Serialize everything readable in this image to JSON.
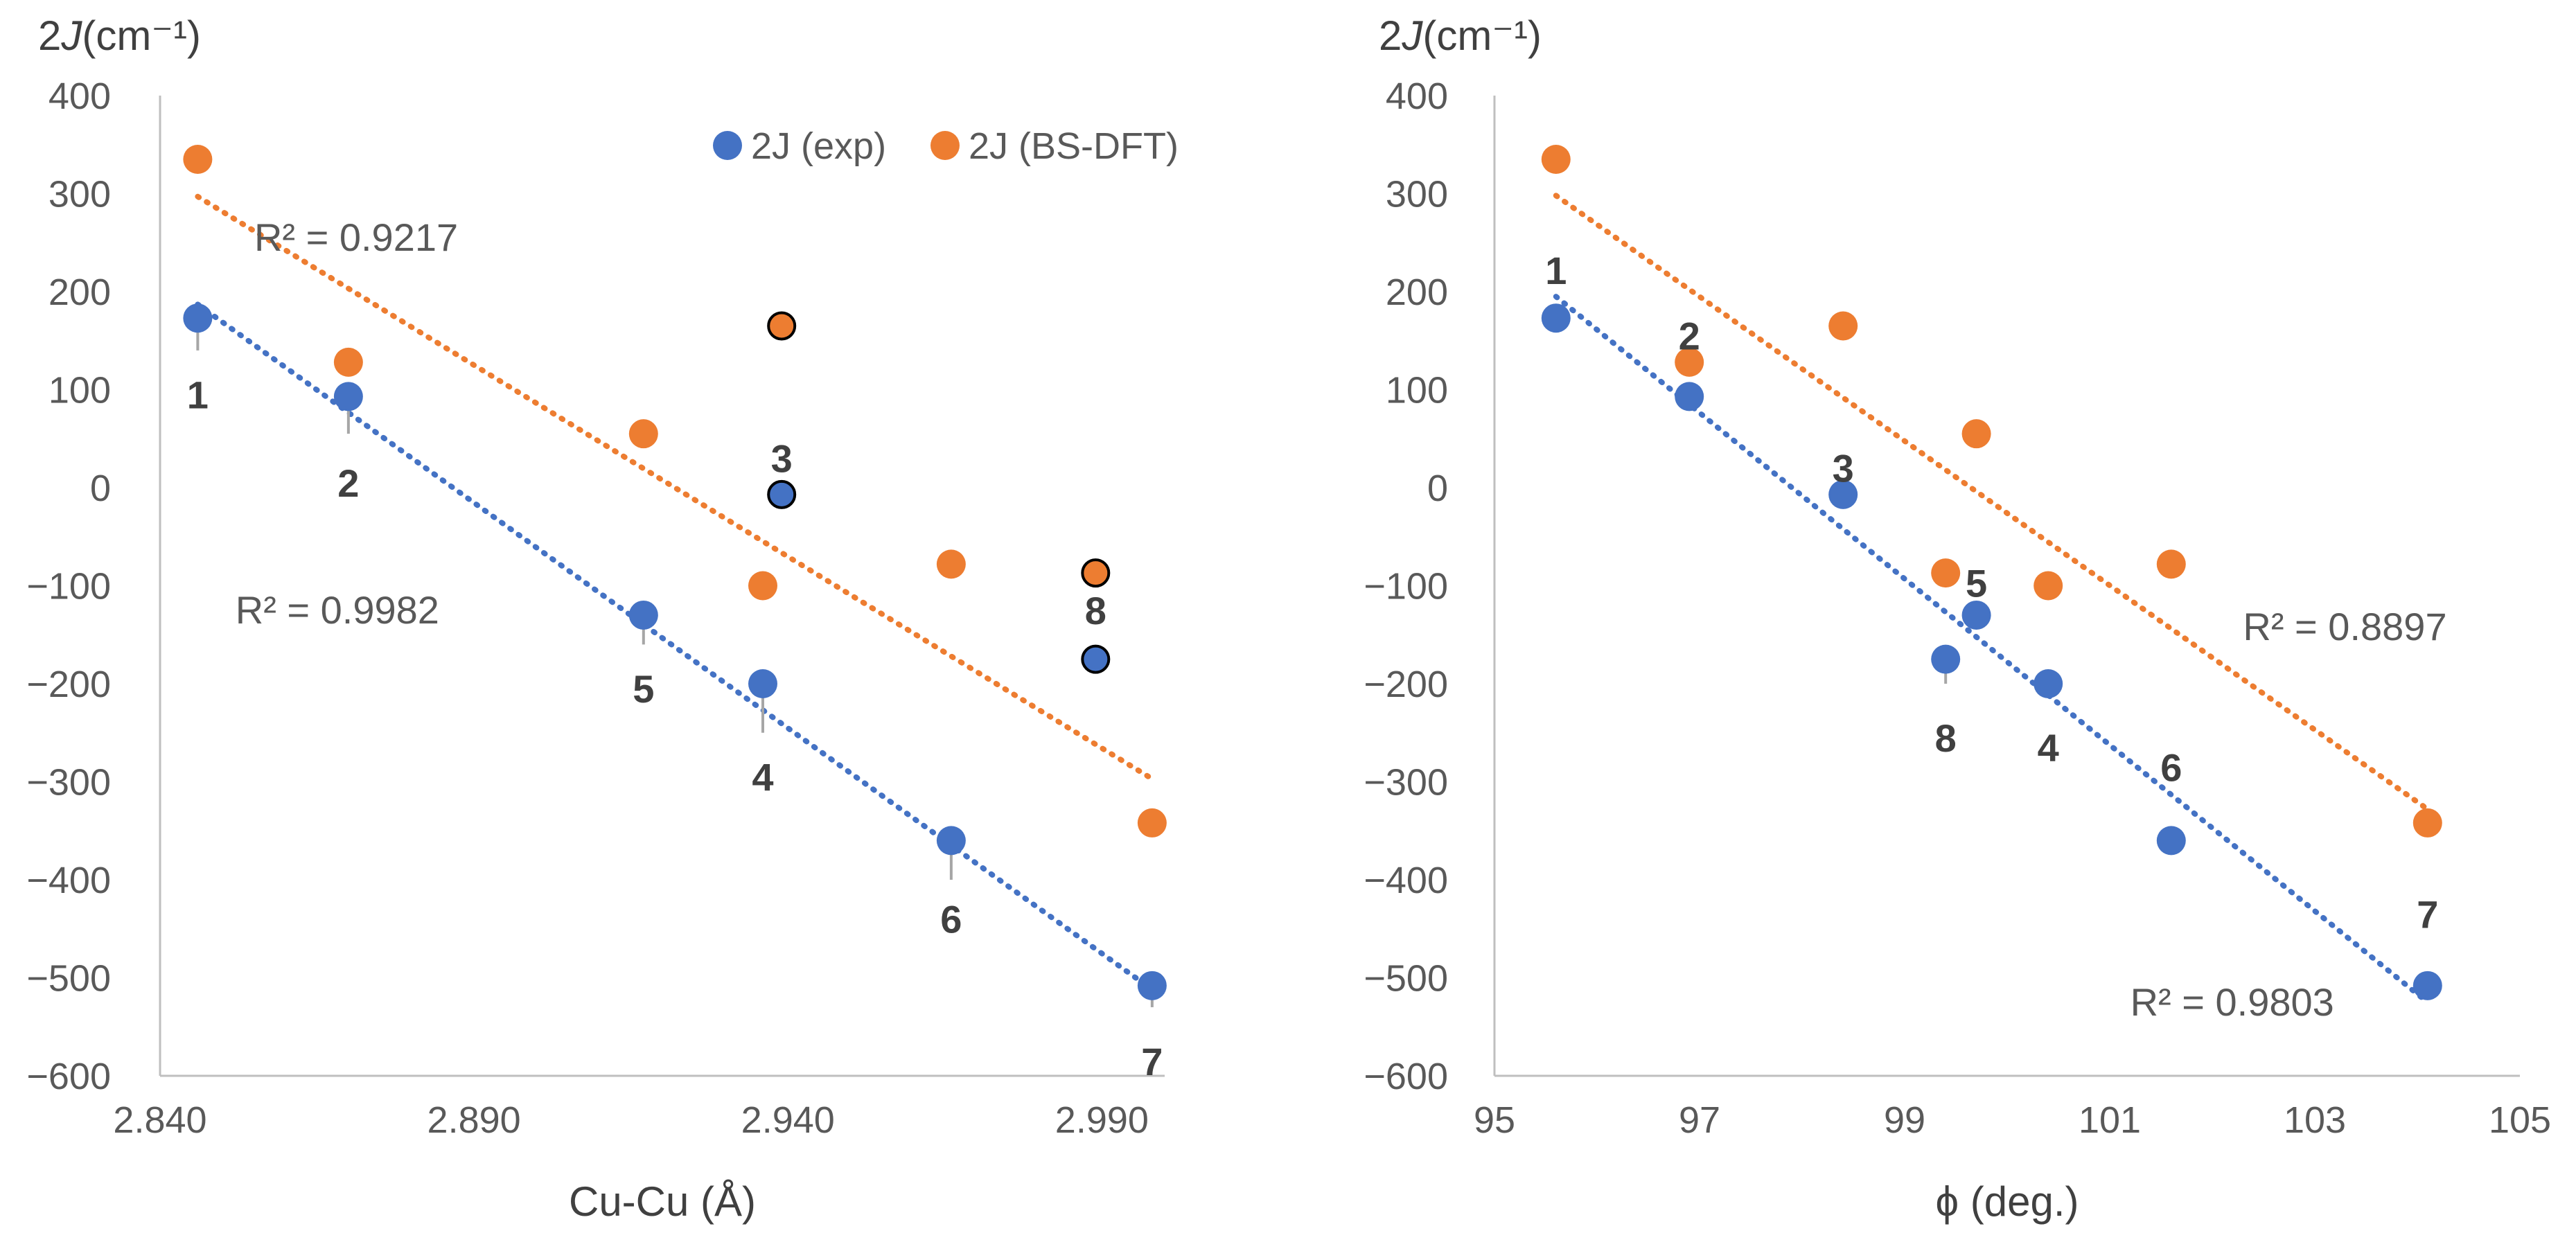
{
  "colors": {
    "exp": "#4472C4",
    "dft": "#ED7D31",
    "axis": "#BFBFBF",
    "text": "#595959",
    "leader": "#A6A6A6",
    "outline": "#000000"
  },
  "legend": {
    "exp_label": "2J (exp)",
    "dft_label": "2J (BS-DFT)"
  },
  "chart_data": [
    {
      "type": "scatter",
      "ylabel_main": "2J",
      "ylabel_unit": "(cm⁻¹)",
      "xlabel": "Cu-Cu (Å)",
      "xlim": [
        2.84,
        3.0
      ],
      "ylim": [
        -600,
        400
      ],
      "x_ticks": [
        "2.840",
        "2.890",
        "2.940",
        "2.990"
      ],
      "x_tick_values": [
        2.84,
        2.89,
        2.94,
        2.99
      ],
      "y_ticks": [
        400,
        300,
        200,
        100,
        0,
        -100,
        -200,
        -300,
        -400,
        -500,
        -600
      ],
      "y_tick_labels": [
        "400",
        "300",
        "200",
        "100",
        "0",
        "−100",
        "−200",
        "−300",
        "−400",
        "−500",
        "−600"
      ],
      "series": [
        {
          "name": "2J (exp)",
          "color_key": "exp",
          "points": [
            {
              "id": "1",
              "x": 2.846,
              "y": 173
            },
            {
              "id": "2",
              "x": 2.87,
              "y": 93
            },
            {
              "id": "3",
              "x": 2.939,
              "y": -7,
              "outlined": true
            },
            {
              "id": "5",
              "x": 2.917,
              "y": -130
            },
            {
              "id": "4",
              "x": 2.936,
              "y": -200
            },
            {
              "id": "6",
              "x": 2.966,
              "y": -360
            },
            {
              "id": "8",
              "x": 2.989,
              "y": -175,
              "outlined": true
            },
            {
              "id": "7",
              "x": 2.998,
              "y": -508
            }
          ]
        },
        {
          "name": "2J (BS-DFT)",
          "color_key": "dft",
          "points": [
            {
              "id": "1",
              "x": 2.846,
              "y": 335
            },
            {
              "id": "2",
              "x": 2.87,
              "y": 128
            },
            {
              "id": "3",
              "x": 2.939,
              "y": 165,
              "outlined": true
            },
            {
              "id": "5",
              "x": 2.917,
              "y": 55
            },
            {
              "id": "4",
              "x": 2.936,
              "y": -100
            },
            {
              "id": "6",
              "x": 2.966,
              "y": -78
            },
            {
              "id": "8",
              "x": 2.989,
              "y": -87,
              "outlined": true
            },
            {
              "id": "7",
              "x": 2.998,
              "y": -342
            }
          ]
        }
      ],
      "trendlines": [
        {
          "series": "2J (exp)",
          "color_key": "exp",
          "x": [
            2.846,
            2.998
          ],
          "y": [
            187,
            -512
          ]
        },
        {
          "series": "2J (BS-DFT)",
          "color_key": "dft",
          "x": [
            2.846,
            2.998
          ],
          "y": [
            297,
            -297
          ]
        }
      ],
      "r2_labels": [
        {
          "text": "R² = 0.9217",
          "series": "2J (BS-DFT)",
          "x": 2.855,
          "y": 255
        },
        {
          "text": "R² = 0.9982",
          "series": "2J (exp)",
          "x": 2.852,
          "y": -125
        }
      ],
      "point_labels": [
        {
          "text": "1",
          "x": 2.846,
          "y": 95
        },
        {
          "text": "2",
          "x": 2.87,
          "y": 5
        },
        {
          "text": "3",
          "x": 2.939,
          "y": 30
        },
        {
          "text": "5",
          "x": 2.917,
          "y": -205
        },
        {
          "text": "4",
          "x": 2.936,
          "y": -295
        },
        {
          "text": "6",
          "x": 2.966,
          "y": -440
        },
        {
          "text": "8",
          "x": 2.989,
          "y": -125
        },
        {
          "text": "7",
          "x": 2.998,
          "y": -585
        }
      ],
      "leaders": [
        {
          "x": 2.846,
          "y1": 173,
          "y2": 140
        },
        {
          "x": 2.87,
          "y1": 93,
          "y2": 55
        },
        {
          "x": 2.917,
          "y1": -130,
          "y2": -160
        },
        {
          "x": 2.936,
          "y1": -200,
          "y2": -250
        },
        {
          "x": 2.966,
          "y1": -360,
          "y2": -400
        },
        {
          "x": 2.998,
          "y1": -508,
          "y2": -530
        }
      ]
    },
    {
      "type": "scatter",
      "ylabel_main": "2J",
      "ylabel_unit": "(cm⁻¹)",
      "xlabel": "ϕ (deg.)",
      "xlim": [
        95,
        105
      ],
      "ylim": [
        -600,
        400
      ],
      "x_ticks": [
        "95",
        "97",
        "99",
        "101",
        "103",
        "105"
      ],
      "x_tick_values": [
        95,
        97,
        99,
        101,
        103,
        105
      ],
      "y_ticks": [
        400,
        300,
        200,
        100,
        0,
        -100,
        -200,
        -300,
        -400,
        -500,
        -600
      ],
      "y_tick_labels": [
        "400",
        "300",
        "200",
        "100",
        "0",
        "−100",
        "−200",
        "−300",
        "−400",
        "−500",
        "−600"
      ],
      "series": [
        {
          "name": "2J (exp)",
          "color_key": "exp",
          "points": [
            {
              "id": "1",
              "x": 95.6,
              "y": 173
            },
            {
              "id": "2",
              "x": 96.9,
              "y": 93
            },
            {
              "id": "3",
              "x": 98.4,
              "y": -7
            },
            {
              "id": "8",
              "x": 99.4,
              "y": -175
            },
            {
              "id": "5",
              "x": 99.7,
              "y": -130
            },
            {
              "id": "4",
              "x": 100.4,
              "y": -200
            },
            {
              "id": "6",
              "x": 101.6,
              "y": -360
            },
            {
              "id": "7",
              "x": 104.1,
              "y": -508
            }
          ]
        },
        {
          "name": "2J (BS-DFT)",
          "color_key": "dft",
          "points": [
            {
              "id": "1",
              "x": 95.6,
              "y": 335
            },
            {
              "id": "2",
              "x": 96.9,
              "y": 128
            },
            {
              "id": "3",
              "x": 98.4,
              "y": 165
            },
            {
              "id": "8",
              "x": 99.4,
              "y": -87
            },
            {
              "id": "5",
              "x": 99.7,
              "y": 55
            },
            {
              "id": "4",
              "x": 100.4,
              "y": -100
            },
            {
              "id": "6",
              "x": 101.6,
              "y": -78
            },
            {
              "id": "7",
              "x": 104.1,
              "y": -342
            }
          ]
        }
      ],
      "trendlines": [
        {
          "series": "2J (exp)",
          "color_key": "exp",
          "x": [
            95.6,
            104.1
          ],
          "y": [
            195,
            -525
          ]
        },
        {
          "series": "2J (BS-DFT)",
          "color_key": "dft",
          "x": [
            95.6,
            104.1
          ],
          "y": [
            298,
            -328
          ]
        }
      ],
      "r2_labels": [
        {
          "text": "R² = 0.8897",
          "series": "2J (BS-DFT)",
          "x": 102.3,
          "y": -142
        },
        {
          "text": "R² = 0.9803",
          "series": "2J (exp)",
          "x": 101.2,
          "y": -525
        }
      ],
      "point_labels": [
        {
          "text": "1",
          "x": 95.6,
          "y": 222
        },
        {
          "text": "2",
          "x": 96.9,
          "y": 155
        },
        {
          "text": "3",
          "x": 98.4,
          "y": 20
        },
        {
          "text": "5",
          "x": 99.7,
          "y": -97
        },
        {
          "text": "8",
          "x": 99.4,
          "y": -255
        },
        {
          "text": "4",
          "x": 100.4,
          "y": -265
        },
        {
          "text": "6",
          "x": 101.6,
          "y": -285
        },
        {
          "text": "7",
          "x": 104.1,
          "y": -435
        }
      ],
      "leaders": [
        {
          "x": 99.4,
          "y1": -175,
          "y2": -200
        }
      ]
    }
  ]
}
